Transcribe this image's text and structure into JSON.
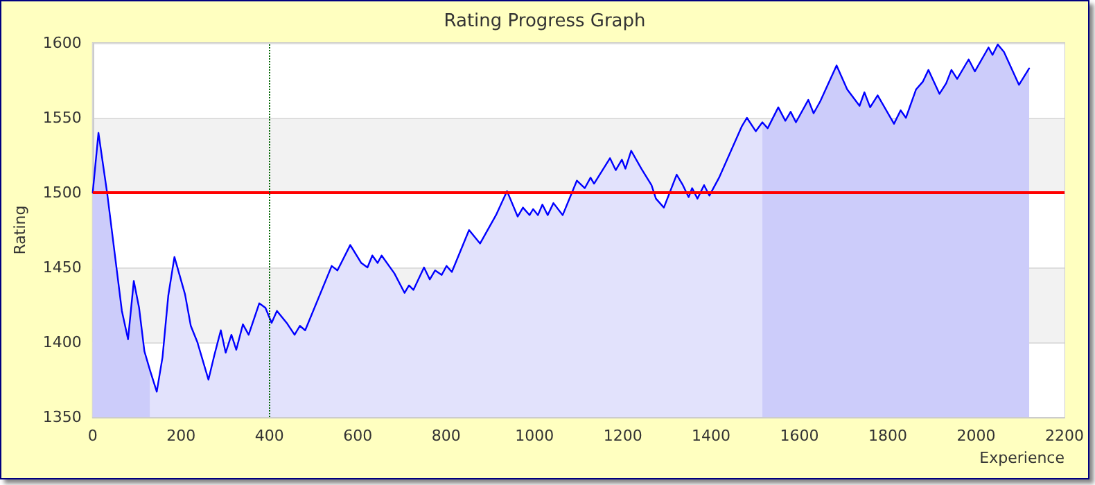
{
  "chart_data": {
    "type": "line",
    "title": "Rating Progress Graph",
    "xlabel": "Experience",
    "ylabel": "Rating",
    "xlim": [
      0,
      2200
    ],
    "xticks": [
      0,
      200,
      400,
      600,
      800,
      1000,
      1200,
      1400,
      1600,
      1800,
      2000,
      2200
    ],
    "ylim": [
      1350,
      1600
    ],
    "yticks": [
      1350,
      1400,
      1450,
      1500,
      1550,
      1600
    ],
    "grid": "y",
    "marker": "none",
    "line_style": "solid",
    "ref_lines": [
      {
        "axis": "y",
        "value": 1500,
        "color": "#ff0000",
        "line_style": "solid"
      },
      {
        "axis": "x",
        "value": 400,
        "color": "#006400",
        "line_style": "dotted"
      }
    ],
    "series": [
      {
        "type": "area",
        "color": "#ccccfa",
        "x": [
          0,
          13,
          33,
          66,
          80,
          93,
          105,
          117,
          130
        ],
        "values": [
          1500,
          1540,
          1499,
          1421,
          1402,
          1441,
          1423,
          1394,
          1381
        ]
      },
      {
        "type": "area",
        "color": "#e2e2fc",
        "x": [
          130,
          145,
          158,
          171,
          185,
          209,
          222,
          237,
          262,
          275,
          290,
          301,
          314,
          325,
          340,
          353,
          377,
          391,
          405,
          417,
          439,
          457,
          469,
          481,
          541,
          554,
          583,
          608,
          622,
          633,
          645,
          654,
          683,
          706,
          716,
          726,
          750,
          763,
          775,
          790,
          801,
          813,
          852,
          877,
          913,
          938,
          962,
          974,
          989,
          997,
          1008,
          1018,
          1030,
          1043,
          1064,
          1096,
          1114,
          1127,
          1135,
          1171,
          1184,
          1198,
          1206,
          1219,
          1242,
          1265,
          1275,
          1293,
          1322,
          1336,
          1349,
          1357,
          1369,
          1384,
          1396,
          1418,
          1469,
          1481,
          1501,
          1516
        ],
        "values": [
          1381,
          1367,
          1390,
          1431,
          1457,
          1432,
          1411,
          1400,
          1375,
          1391,
          1408,
          1393,
          1405,
          1395,
          1412,
          1405,
          1426,
          1423,
          1413,
          1421,
          1413,
          1405,
          1411,
          1408,
          1451,
          1448,
          1465,
          1453,
          1450,
          1458,
          1453,
          1458,
          1446,
          1433,
          1438,
          1435,
          1450,
          1442,
          1448,
          1445,
          1451,
          1447,
          1475,
          1466,
          1485,
          1501,
          1484,
          1490,
          1485,
          1489,
          1485,
          1492,
          1485,
          1493,
          1485,
          1508,
          1503,
          1510,
          1506,
          1523,
          1515,
          1522,
          1516,
          1528,
          1516,
          1505,
          1496,
          1490,
          1512,
          1505,
          1497,
          1503,
          1496,
          1505,
          1498,
          1510,
          1544,
          1550,
          1541,
          1547
        ]
      },
      {
        "type": "area",
        "color": "#ccccfa",
        "x": [
          1516,
          1528,
          1552,
          1568,
          1580,
          1592,
          1620,
          1632,
          1647,
          1684,
          1708,
          1736,
          1747,
          1760,
          1777,
          1814,
          1829,
          1841,
          1864,
          1879,
          1892,
          1917,
          1932,
          1944,
          1957,
          1983,
          1997,
          2028,
          2037,
          2049,
          2063,
          2097,
          2120
        ],
        "values": [
          1547,
          1543,
          1557,
          1548,
          1554,
          1547,
          1562,
          1553,
          1561,
          1585,
          1569,
          1558,
          1567,
          1557,
          1565,
          1546,
          1555,
          1550,
          1569,
          1574,
          1582,
          1566,
          1573,
          1582,
          1576,
          1589,
          1581,
          1597,
          1592,
          1599,
          1594,
          1572,
          1583
        ]
      },
      {
        "color": "#0000ff",
        "x": [
          0,
          13,
          33,
          66,
          80,
          93,
          105,
          117,
          130,
          145,
          158,
          171,
          185,
          209,
          222,
          237,
          262,
          275,
          290,
          301,
          314,
          325,
          340,
          353,
          377,
          391,
          405,
          417,
          439,
          457,
          469,
          481,
          541,
          554,
          583,
          608,
          622,
          633,
          645,
          654,
          683,
          706,
          716,
          726,
          750,
          763,
          775,
          790,
          801,
          813,
          852,
          877,
          913,
          938,
          962,
          974,
          989,
          997,
          1008,
          1018,
          1030,
          1043,
          1064,
          1096,
          1114,
          1127,
          1135,
          1171,
          1184,
          1198,
          1206,
          1219,
          1242,
          1265,
          1275,
          1293,
          1322,
          1336,
          1349,
          1357,
          1369,
          1384,
          1396,
          1418,
          1469,
          1481,
          1501,
          1516,
          1528,
          1552,
          1568,
          1580,
          1592,
          1620,
          1632,
          1647,
          1684,
          1708,
          1736,
          1747,
          1760,
          1777,
          1814,
          1829,
          1841,
          1864,
          1879,
          1892,
          1917,
          1932,
          1944,
          1957,
          1983,
          1997,
          2028,
          2037,
          2049,
          2063,
          2097,
          2120
        ],
        "values": [
          1500,
          1540,
          1499,
          1421,
          1402,
          1441,
          1423,
          1394,
          1381,
          1367,
          1390,
          1431,
          1457,
          1432,
          1411,
          1400,
          1375,
          1391,
          1408,
          1393,
          1405,
          1395,
          1412,
          1405,
          1426,
          1423,
          1413,
          1421,
          1413,
          1405,
          1411,
          1408,
          1451,
          1448,
          1465,
          1453,
          1450,
          1458,
          1453,
          1458,
          1446,
          1433,
          1438,
          1435,
          1450,
          1442,
          1448,
          1445,
          1451,
          1447,
          1475,
          1466,
          1485,
          1501,
          1484,
          1490,
          1485,
          1489,
          1485,
          1492,
          1485,
          1493,
          1485,
          1508,
          1503,
          1510,
          1506,
          1523,
          1515,
          1522,
          1516,
          1528,
          1516,
          1505,
          1496,
          1490,
          1512,
          1505,
          1497,
          1503,
          1496,
          1505,
          1498,
          1510,
          1544,
          1550,
          1541,
          1547,
          1543,
          1557,
          1548,
          1554,
          1547,
          1562,
          1553,
          1561,
          1585,
          1569,
          1558,
          1567,
          1557,
          1565,
          1546,
          1555,
          1550,
          1569,
          1574,
          1582,
          1566,
          1573,
          1582,
          1576,
          1589,
          1581,
          1597,
          1592,
          1599,
          1594,
          1572,
          1583
        ]
      }
    ]
  }
}
